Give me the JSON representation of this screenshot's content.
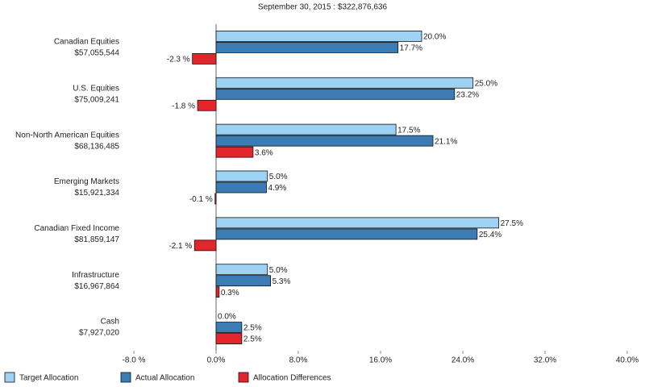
{
  "chart_data": {
    "type": "bar",
    "orientation": "horizontal",
    "title": "September 30, 2015 : $322,876,636",
    "categories": [
      "Canadian Equities",
      "U.S. Equities",
      "Non-North American Equities",
      "Emerging Markets",
      "Canadian Fixed Income",
      "Infrastructure",
      "Cash"
    ],
    "category_amounts": [
      "$57,055,544",
      "$75,009,241",
      "$68,136,485",
      "$15,921,334",
      "$81,859,147",
      "$16,967,864",
      "$7,927,020"
    ],
    "series": [
      {
        "name": "Target Allocation",
        "color": "#9dd2f3",
        "values": [
          20.0,
          25.0,
          17.5,
          5.0,
          27.5,
          5.0,
          0.0
        ],
        "value_labels": [
          "20.0%",
          "25.0%",
          "17.5%",
          "5.0%",
          "27.5%",
          "5.0%",
          "0.0%"
        ]
      },
      {
        "name": "Actual Allocation",
        "color": "#3c7cb5",
        "values": [
          17.7,
          23.2,
          21.1,
          4.9,
          25.4,
          5.3,
          2.5
        ],
        "value_labels": [
          "17.7%",
          "23.2%",
          "21.1%",
          "4.9%",
          "25.4%",
          "5.3%",
          "2.5%"
        ]
      },
      {
        "name": "Allocation Differences",
        "color": "#e3262b",
        "values": [
          -2.3,
          -1.8,
          3.6,
          -0.1,
          -2.1,
          0.3,
          2.5
        ],
        "value_labels": [
          "-2.3 %",
          "-1.8 %",
          "3.6%",
          "-0.1 %",
          "-2.1 %",
          "0.3%",
          "2.5%"
        ]
      }
    ],
    "xlim": [
      -8,
      40
    ],
    "xticks": [
      {
        "value": -8,
        "label": "-8.0 %"
      },
      {
        "value": 0,
        "label": "0.0%"
      },
      {
        "value": 8,
        "label": "8.0%"
      },
      {
        "value": 16,
        "label": "16.0%"
      },
      {
        "value": 24,
        "label": "24.0%"
      },
      {
        "value": 32,
        "label": "32.0%"
      },
      {
        "value": 40,
        "label": "40.0%"
      }
    ]
  }
}
